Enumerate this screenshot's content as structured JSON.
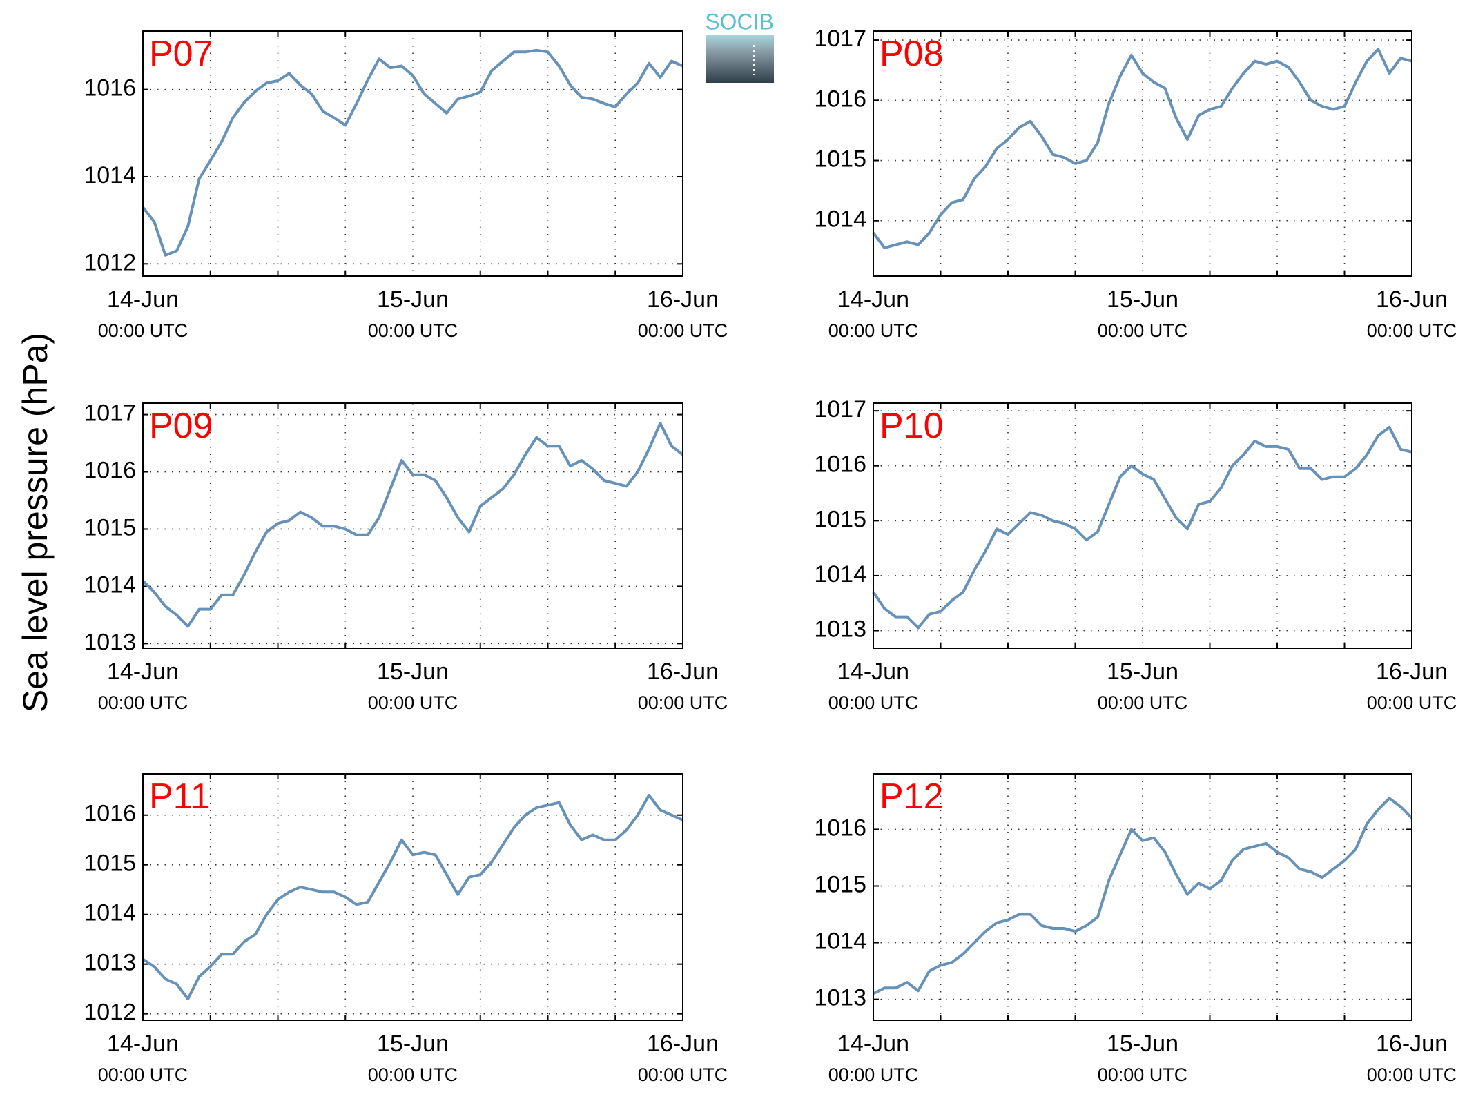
{
  "ylabel": "Sea level pressure (hPa)",
  "logo": "SOCIB",
  "chart_data": [
    {
      "type": "line",
      "title": "P07",
      "x": [
        0,
        1,
        2,
        3,
        4,
        5,
        6,
        7,
        8,
        9,
        10,
        11,
        12,
        13,
        14,
        15,
        16,
        17,
        18,
        19,
        20,
        21,
        22,
        23,
        24,
        25,
        26,
        27,
        28,
        29,
        30,
        31,
        32,
        33,
        34,
        35,
        36,
        37,
        38,
        39,
        40,
        41,
        42,
        43,
        44,
        45,
        46,
        47,
        48
      ],
      "values": [
        1013.3,
        1012.97,
        1012.2,
        1012.3,
        1012.86,
        1013.95,
        1014.37,
        1014.8,
        1015.35,
        1015.7,
        1015.96,
        1016.15,
        1016.2,
        1016.37,
        1016.1,
        1015.9,
        1015.5,
        1015.35,
        1015.18,
        1015.68,
        1016.22,
        1016.7,
        1016.5,
        1016.54,
        1016.32,
        1015.9,
        1015.68,
        1015.46,
        1015.78,
        1015.85,
        1015.94,
        1016.43,
        1016.65,
        1016.86,
        1016.86,
        1016.9,
        1016.86,
        1016.54,
        1016.1,
        1015.82,
        1015.78,
        1015.68,
        1015.6,
        1015.9,
        1016.15,
        1016.6,
        1016.28,
        1016.65,
        1016.54
      ],
      "color": "#6691b8",
      "xlim": [
        0,
        48
      ],
      "xticks": [
        {
          "value": 0,
          "label": "14-Jun"
        },
        {
          "value": 24,
          "label": "15-Jun"
        },
        {
          "value": 48,
          "label": "16-Jun"
        }
      ],
      "xtick_sublabels": [
        "00:00 UTC",
        "00:00 UTC",
        "00:00 UTC"
      ],
      "xminor": [
        6,
        12,
        18,
        30,
        36,
        42
      ],
      "ylim": [
        1011.72,
        1017.34
      ],
      "yticks": [
        1012,
        1014,
        1016
      ],
      "grid": true
    },
    {
      "type": "line",
      "title": "P08",
      "x": [
        0,
        1,
        2,
        3,
        4,
        5,
        6,
        7,
        8,
        9,
        10,
        11,
        12,
        13,
        14,
        15,
        16,
        17,
        18,
        19,
        20,
        21,
        22,
        23,
        24,
        25,
        26,
        27,
        28,
        29,
        30,
        31,
        32,
        33,
        34,
        35,
        36,
        37,
        38,
        39,
        40,
        41,
        42,
        43,
        44,
        45,
        46,
        47,
        48
      ],
      "values": [
        1013.8,
        1013.55,
        1013.6,
        1013.65,
        1013.6,
        1013.8,
        1014.1,
        1014.3,
        1014.35,
        1014.7,
        1014.9,
        1015.2,
        1015.35,
        1015.55,
        1015.65,
        1015.4,
        1015.1,
        1015.05,
        1014.95,
        1015.0,
        1015.3,
        1015.95,
        1016.4,
        1016.75,
        1016.45,
        1016.3,
        1016.2,
        1015.7,
        1015.35,
        1015.75,
        1015.85,
        1015.9,
        1016.2,
        1016.45,
        1016.65,
        1016.6,
        1016.65,
        1016.55,
        1016.3,
        1016.0,
        1015.9,
        1015.85,
        1015.9,
        1016.3,
        1016.65,
        1016.85,
        1016.45,
        1016.7,
        1016.65
      ],
      "color": "#6691b8",
      "xlim": [
        0,
        48
      ],
      "xticks": [
        {
          "value": 0,
          "label": "14-Jun"
        },
        {
          "value": 24,
          "label": "15-Jun"
        },
        {
          "value": 48,
          "label": "16-Jun"
        }
      ],
      "xtick_sublabels": [
        "00:00 UTC",
        "00:00 UTC",
        "00:00 UTC"
      ],
      "xminor": [
        6,
        12,
        18,
        30,
        36,
        42
      ],
      "ylim": [
        1013.08,
        1017.15
      ],
      "yticks": [
        1014,
        1015,
        1016,
        1017
      ],
      "grid": true
    },
    {
      "type": "line",
      "title": "P09",
      "x": [
        0,
        1,
        2,
        3,
        4,
        5,
        6,
        7,
        8,
        9,
        10,
        11,
        12,
        13,
        14,
        15,
        16,
        17,
        18,
        19,
        20,
        21,
        22,
        23,
        24,
        25,
        26,
        27,
        28,
        29,
        30,
        31,
        32,
        33,
        34,
        35,
        36,
        37,
        38,
        39,
        40,
        41,
        42,
        43,
        44,
        45,
        46,
        47,
        48
      ],
      "values": [
        1014.1,
        1013.9,
        1013.65,
        1013.5,
        1013.3,
        1013.6,
        1013.6,
        1013.85,
        1013.85,
        1014.2,
        1014.6,
        1014.95,
        1015.1,
        1015.15,
        1015.3,
        1015.2,
        1015.05,
        1015.05,
        1015.0,
        1014.9,
        1014.9,
        1015.2,
        1015.7,
        1016.2,
        1015.95,
        1015.95,
        1015.85,
        1015.55,
        1015.2,
        1014.95,
        1015.4,
        1015.55,
        1015.7,
        1015.95,
        1016.3,
        1016.6,
        1016.45,
        1016.45,
        1016.1,
        1016.2,
        1016.05,
        1015.85,
        1015.8,
        1015.75,
        1016.0,
        1016.4,
        1016.85,
        1016.45,
        1016.3
      ],
      "color": "#6691b8",
      "xlim": [
        0,
        48
      ],
      "xticks": [
        {
          "value": 0,
          "label": "14-Jun"
        },
        {
          "value": 24,
          "label": "15-Jun"
        },
        {
          "value": 48,
          "label": "16-Jun"
        }
      ],
      "xtick_sublabels": [
        "00:00 UTC",
        "00:00 UTC",
        "00:00 UTC"
      ],
      "xminor": [
        6,
        12,
        18,
        30,
        36,
        42
      ],
      "ylim": [
        1012.92,
        1017.2
      ],
      "yticks": [
        1013,
        1014,
        1015,
        1016,
        1017
      ],
      "grid": true
    },
    {
      "type": "line",
      "title": "P10",
      "x": [
        0,
        1,
        2,
        3,
        4,
        5,
        6,
        7,
        8,
        9,
        10,
        11,
        12,
        13,
        14,
        15,
        16,
        17,
        18,
        19,
        20,
        21,
        22,
        23,
        24,
        25,
        26,
        27,
        28,
        29,
        30,
        31,
        32,
        33,
        34,
        35,
        36,
        37,
        38,
        39,
        40,
        41,
        42,
        43,
        44,
        45,
        46,
        47,
        48
      ],
      "values": [
        1013.7,
        1013.4,
        1013.25,
        1013.25,
        1013.05,
        1013.3,
        1013.35,
        1013.55,
        1013.7,
        1014.1,
        1014.45,
        1014.85,
        1014.75,
        1014.95,
        1015.15,
        1015.1,
        1015.0,
        1014.95,
        1014.85,
        1014.65,
        1014.8,
        1015.3,
        1015.8,
        1016.0,
        1015.85,
        1015.75,
        1015.4,
        1015.05,
        1014.85,
        1015.3,
        1015.35,
        1015.6,
        1016.0,
        1016.2,
        1016.45,
        1016.35,
        1016.35,
        1016.3,
        1015.95,
        1015.95,
        1015.75,
        1015.8,
        1015.8,
        1015.95,
        1016.2,
        1016.55,
        1016.7,
        1016.3,
        1016.25
      ],
      "color": "#6691b8",
      "xlim": [
        0,
        48
      ],
      "xticks": [
        {
          "value": 0,
          "label": "14-Jun"
        },
        {
          "value": 24,
          "label": "15-Jun"
        },
        {
          "value": 48,
          "label": "16-Jun"
        }
      ],
      "xtick_sublabels": [
        "00:00 UTC",
        "00:00 UTC",
        "00:00 UTC"
      ],
      "xminor": [
        6,
        12,
        18,
        30,
        36,
        42
      ],
      "ylim": [
        1012.68,
        1017.14
      ],
      "yticks": [
        1013,
        1014,
        1015,
        1016,
        1017
      ],
      "grid": true
    },
    {
      "type": "line",
      "title": "P11",
      "x": [
        0,
        1,
        2,
        3,
        4,
        5,
        6,
        7,
        8,
        9,
        10,
        11,
        12,
        13,
        14,
        15,
        16,
        17,
        18,
        19,
        20,
        21,
        22,
        23,
        24,
        25,
        26,
        27,
        28,
        29,
        30,
        31,
        32,
        33,
        34,
        35,
        36,
        37,
        38,
        39,
        40,
        41,
        42,
        43,
        44,
        45,
        46,
        47,
        48
      ],
      "values": [
        1013.1,
        1012.95,
        1012.7,
        1012.6,
        1012.3,
        1012.75,
        1012.95,
        1013.2,
        1013.2,
        1013.45,
        1013.6,
        1014.0,
        1014.3,
        1014.45,
        1014.55,
        1014.5,
        1014.45,
        1014.45,
        1014.35,
        1014.2,
        1014.25,
        1014.65,
        1015.05,
        1015.5,
        1015.2,
        1015.25,
        1015.2,
        1014.8,
        1014.4,
        1014.75,
        1014.8,
        1015.05,
        1015.4,
        1015.75,
        1016.0,
        1016.15,
        1016.2,
        1016.25,
        1015.8,
        1015.5,
        1015.6,
        1015.5,
        1015.5,
        1015.7,
        1016.0,
        1016.4,
        1016.1,
        1016.0,
        1015.9
      ],
      "color": "#6691b8",
      "xlim": [
        0,
        48
      ],
      "xticks": [
        {
          "value": 0,
          "label": "14-Jun"
        },
        {
          "value": 24,
          "label": "15-Jun"
        },
        {
          "value": 48,
          "label": "16-Jun"
        }
      ],
      "xtick_sublabels": [
        "00:00 UTC",
        "00:00 UTC",
        "00:00 UTC"
      ],
      "xminor": [
        6,
        12,
        18,
        30,
        36,
        42
      ],
      "ylim": [
        1011.87,
        1016.83
      ],
      "yticks": [
        1012,
        1013,
        1014,
        1015,
        1016
      ],
      "grid": true
    },
    {
      "type": "line",
      "title": "P12",
      "x": [
        0,
        1,
        2,
        3,
        4,
        5,
        6,
        7,
        8,
        9,
        10,
        11,
        12,
        13,
        14,
        15,
        16,
        17,
        18,
        19,
        20,
        21,
        22,
        23,
        24,
        25,
        26,
        27,
        28,
        29,
        30,
        31,
        32,
        33,
        34,
        35,
        36,
        37,
        38,
        39,
        40,
        41,
        42,
        43,
        44,
        45,
        46,
        47,
        48
      ],
      "values": [
        1013.1,
        1013.2,
        1013.2,
        1013.3,
        1013.15,
        1013.5,
        1013.6,
        1013.65,
        1013.8,
        1014.0,
        1014.2,
        1014.35,
        1014.4,
        1014.5,
        1014.5,
        1014.3,
        1014.25,
        1014.25,
        1014.2,
        1014.3,
        1014.45,
        1015.1,
        1015.55,
        1016.0,
        1015.8,
        1015.85,
        1015.6,
        1015.2,
        1014.85,
        1015.05,
        1014.95,
        1015.1,
        1015.45,
        1015.65,
        1015.7,
        1015.75,
        1015.6,
        1015.5,
        1015.3,
        1015.25,
        1015.15,
        1015.3,
        1015.45,
        1015.65,
        1016.1,
        1016.35,
        1016.55,
        1016.4,
        1016.2
      ],
      "color": "#6691b8",
      "xlim": [
        0,
        48
      ],
      "xticks": [
        {
          "value": 0,
          "label": "14-Jun"
        },
        {
          "value": 24,
          "label": "15-Jun"
        },
        {
          "value": 48,
          "label": "16-Jun"
        }
      ],
      "xtick_sublabels": [
        "00:00 UTC",
        "00:00 UTC",
        "00:00 UTC"
      ],
      "xminor": [
        6,
        12,
        18,
        30,
        36,
        42
      ],
      "ylim": [
        1012.63,
        1016.98
      ],
      "yticks": [
        1013,
        1014,
        1015,
        1016
      ],
      "grid": true
    }
  ]
}
